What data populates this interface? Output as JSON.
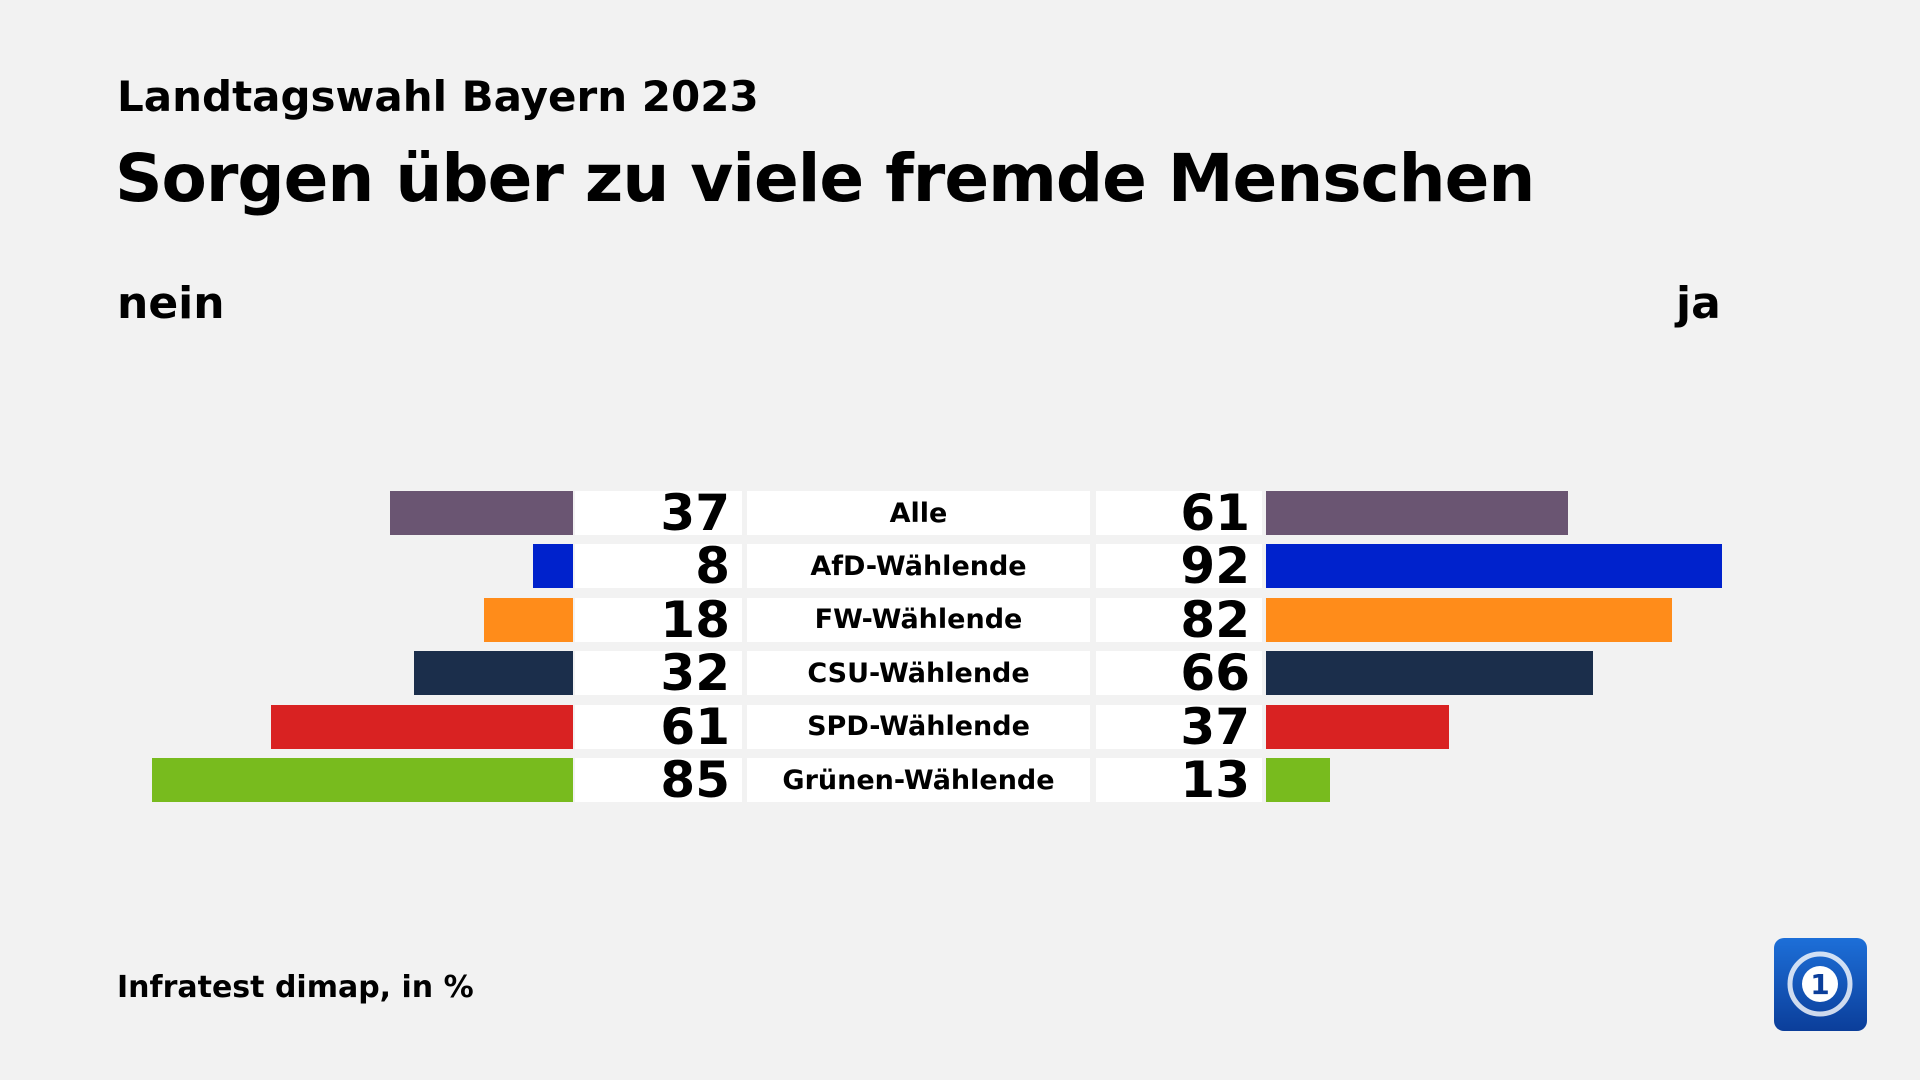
{
  "header": {
    "supertitle": "Landtagswahl Bayern 2023",
    "title": "Sorgen über zu viele fremde Menschen"
  },
  "footer": {
    "source": "Infratest dimap, in %"
  },
  "logo": {
    "icon": "ard-tagesschau-logo"
  },
  "chart_data": {
    "type": "bar",
    "orientation": "diverging-horizontal",
    "left_label": "nein",
    "right_label": "ja",
    "categories": [
      "Alle",
      "AfD-Wählende",
      "FW-Wählende",
      "CSU-Wählende",
      "SPD-Wählende",
      "Grünen-Wählende"
    ],
    "series": [
      {
        "name": "nein",
        "values": [
          37,
          8,
          18,
          32,
          61,
          85
        ]
      },
      {
        "name": "ja",
        "values": [
          61,
          92,
          82,
          66,
          37,
          13
        ]
      }
    ],
    "colors": [
      "#6a5572",
      "#0022cc",
      "#ff8c1a",
      "#1b2e4b",
      "#d92222",
      "#78bb1e"
    ],
    "unit": "%"
  }
}
